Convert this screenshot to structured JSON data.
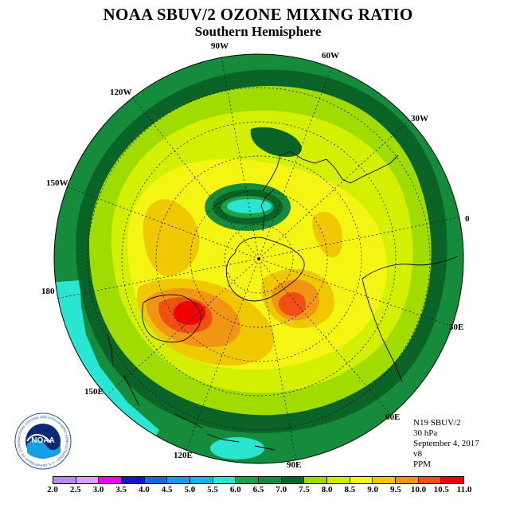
{
  "title": "NOAA SBUV/2 OZONE MIXING RATIO",
  "subtitle": "Southern Hemisphere",
  "longitude_labels": [
    "90W",
    "60W",
    "30W",
    "0",
    "30E",
    "60E",
    "90E",
    "120E",
    "150E",
    "180",
    "150W",
    "120W"
  ],
  "info": {
    "satellite": "N19 SBUV/2",
    "pressure": "30 hPa",
    "date": "September 4, 2017",
    "version": "v8",
    "units": "PPM"
  },
  "legend": {
    "ticks": [
      "2.0",
      "2.5",
      "3.0",
      "3.5",
      "4.0",
      "4.5",
      "5.0",
      "5.5",
      "6.0",
      "6.5",
      "7.0",
      "7.5",
      "8.0",
      "8.5",
      "9.0",
      "9.5",
      "10.0",
      "10.5",
      "11.0"
    ],
    "colors": [
      "#b48cf0",
      "#dca0f0",
      "#f000f0",
      "#1414c8",
      "#1e64dc",
      "#1e96f0",
      "#14b4f0",
      "#28e6d2",
      "#1ea046",
      "#148c3c",
      "#0a6428",
      "#a0dc00",
      "#d2f000",
      "#f5f514",
      "#f0c800",
      "#f09614",
      "#f05014",
      "#f00000",
      "#7d4b32"
    ]
  },
  "logo": {
    "text": "NOAA",
    "ring_text": "NATIONAL OCEANIC AND ATMOSPHERIC ADMINISTRATION · U.S. DEPARTMENT OF COMMERCE"
  }
}
